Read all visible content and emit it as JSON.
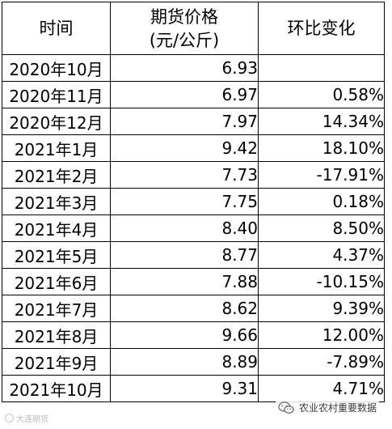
{
  "table": {
    "headers": {
      "time": "时间",
      "price_line1": "期货价格",
      "price_line2": "(元/公斤)",
      "change": "环比变化"
    },
    "rows": [
      {
        "time": "2020年10月",
        "price": "6.93",
        "change": ""
      },
      {
        "time": "2020年11月",
        "price": "6.97",
        "change": "0.58%"
      },
      {
        "time": "2020年12月",
        "price": "7.97",
        "change": "14.34%"
      },
      {
        "time": "2021年1月",
        "price": "9.42",
        "change": "18.10%"
      },
      {
        "time": "2021年2月",
        "price": "7.73",
        "change": "-17.91%"
      },
      {
        "time": "2021年3月",
        "price": "7.75",
        "change": "0.18%"
      },
      {
        "time": "2021年4月",
        "price": "8.40",
        "change": "8.50%"
      },
      {
        "time": "2021年5月",
        "price": "8.77",
        "change": "4.37%"
      },
      {
        "time": "2021年6月",
        "price": "7.88",
        "change": "-10.15%"
      },
      {
        "time": "2021年7月",
        "price": "8.62",
        "change": "9.39%"
      },
      {
        "time": "2021年8月",
        "price": "9.66",
        "change": "12.00%"
      },
      {
        "time": "2021年9月",
        "price": "8.89",
        "change": "-7.89%"
      },
      {
        "time": "2021年10月",
        "price": "9.31",
        "change": "4.71%"
      }
    ]
  },
  "watermarks": {
    "left_text": "大连期货",
    "right_text": "农业农村重要数据",
    "right_icon": "wechat-icon"
  }
}
